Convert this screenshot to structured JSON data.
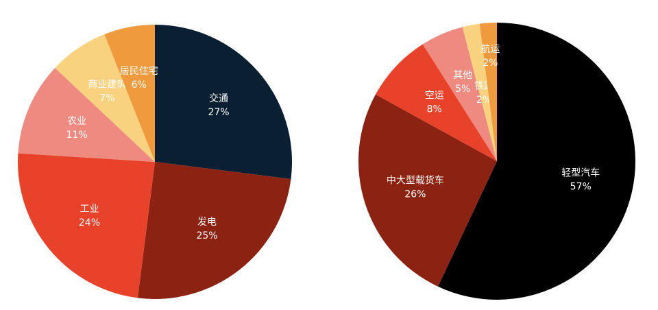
{
  "chart_data": [
    {
      "type": "pie",
      "categories": [
        "交通",
        "发电",
        "工业",
        "农业",
        "商业建筑",
        "居民住宅"
      ],
      "values": [
        27,
        25,
        24,
        11,
        7,
        6
      ],
      "value_labels": [
        "27%",
        "25%",
        "24%",
        "11%",
        "7%",
        "6%"
      ],
      "colors": [
        "#0b1f33",
        "#8b2212",
        "#e8432a",
        "#ef8a80",
        "#f8d27e",
        "#ef9a3c"
      ]
    },
    {
      "type": "pie",
      "categories": [
        "轻型汽车",
        "中大型载货车",
        "空运",
        "其他",
        "铁路",
        "航运"
      ],
      "values": [
        57,
        26,
        8,
        5,
        2,
        2
      ],
      "value_labels": [
        "57%",
        "26%",
        "8%",
        "5%",
        "2%",
        "2%"
      ],
      "colors": [
        "#000000",
        "#8b2212",
        "#e8432a",
        "#ef8a80",
        "#f8d27e",
        "#ef9a3c"
      ]
    }
  ]
}
